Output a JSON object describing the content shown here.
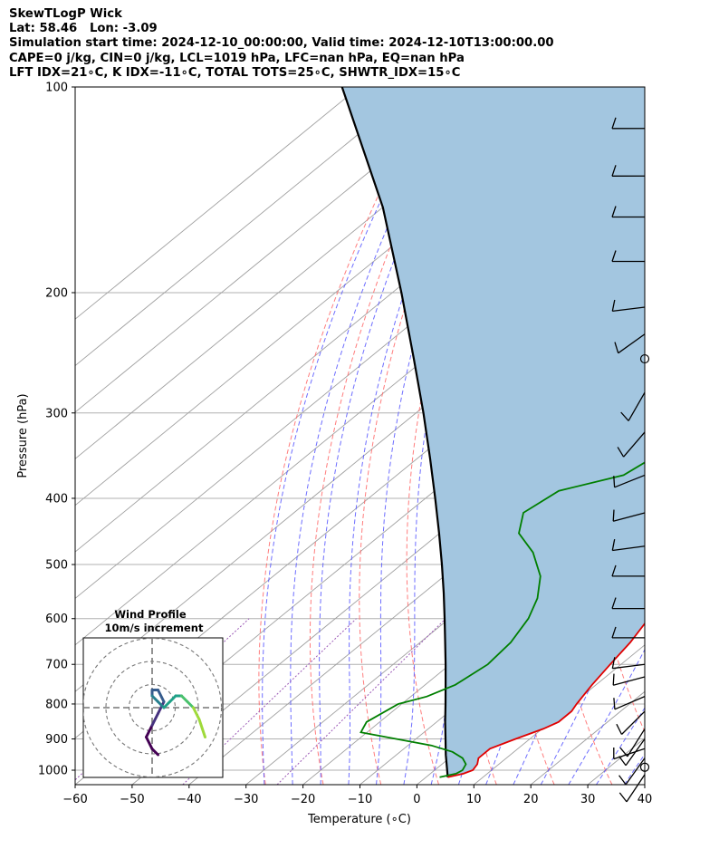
{
  "header": {
    "title": "SkewTLogP Wick",
    "location": "Lat: 58.46   Lon: -3.09",
    "times": "Simulation start time: 2024-12-10_00:00:00, Valid time: 2024-12-10T13:00:00.00",
    "indices1": "CAPE=0 j/kg, CIN=0 j/kg, LCL=1019 hPa, LFC=nan hPa, EQ=nan hPa",
    "indices2": "LFT IDX=21∘C, K IDX=-11∘C, TOTAL TOTS=25∘C, SHWTR_IDX=15∘C"
  },
  "chart_data": {
    "type": "skew-t log-p",
    "xlabel": "Temperature (∘C)",
    "ylabel": "Pressure (hPa)",
    "xlim": [
      -60,
      40
    ],
    "ylim": [
      1050,
      100
    ],
    "x_ticks": [
      -60,
      -50,
      -40,
      -30,
      -20,
      -10,
      0,
      10,
      20,
      30,
      40
    ],
    "x_tick_labels": [
      "−60",
      "−50",
      "−40",
      "−30",
      "−20",
      "−10",
      "0",
      "10",
      "20",
      "30",
      "40"
    ],
    "y_ticks": [
      100,
      200,
      300,
      400,
      500,
      600,
      700,
      800,
      900,
      1000
    ],
    "grid": true,
    "colors": {
      "temperature": "#e00000",
      "dewpoint": "#007f00",
      "parcel": "#000000",
      "shading": "#a3c6e0",
      "dry_adiabats": "#ff6666",
      "moist_adiabats": "#5555ff",
      "mixing_ratio": "#9b59b6",
      "isotherms": "#a0a0a0"
    },
    "temperature": {
      "pressure": [
        1024,
        1012,
        1000,
        980,
        960,
        930,
        900,
        870,
        850,
        820,
        800,
        750,
        700,
        650,
        600,
        550,
        500,
        460,
        430,
        400,
        370,
        350,
        320,
        300,
        270,
        250,
        230,
        215,
        200,
        190,
        175,
        160,
        150,
        140,
        130,
        120,
        110,
        100
      ],
      "value": [
        3.8,
        5.8,
        6.7,
        6.2,
        5.1,
        5.1,
        7.5,
        10.2,
        11.4,
        11.4,
        10.7,
        9.3,
        8.1,
        6.9,
        5.0,
        2.8,
        0.2,
        -2.2,
        -5.3,
        -8.5,
        -11.8,
        -13.7,
        -16.9,
        -18.8,
        -21.8,
        -24.3,
        -27.5,
        -29.8,
        -30.6,
        -32.4,
        -34.7,
        -37.2,
        -38.4,
        -39.3,
        -40.4,
        -41.5,
        -42.7,
        -43.8
      ]
    },
    "dewpoint": {
      "pressure": [
        1024,
        1012,
        1000,
        980,
        960,
        940,
        920,
        880,
        850,
        800,
        780,
        750,
        700,
        650,
        600,
        560,
        520,
        480,
        450,
        420,
        390,
        370,
        350,
        320,
        300,
        270,
        250,
        230,
        215,
        200,
        180,
        170,
        160,
        150,
        140,
        130,
        120,
        110,
        100
      ],
      "value": [
        2.4,
        4.5,
        4.9,
        4.2,
        2.3,
        -0.8,
        -5.9,
        -21.1,
        -22.3,
        -20.6,
        -17.2,
        -14.7,
        -13.4,
        -14.1,
        -16.1,
        -18.9,
        -23.1,
        -29.5,
        -36.1,
        -39.7,
        -38.2,
        -30.2,
        -28.9,
        -32.8,
        -35.4,
        -40.6,
        -43.2,
        -45.1,
        -46.1,
        -47.3,
        -47.0,
        -47.0,
        -47.1,
        -47.6,
        -48.7,
        -49.5,
        -50.5,
        -52.1,
        -52.2
      ]
    },
    "parcel": {
      "pressure": [
        1024,
        1000,
        950,
        900,
        850,
        800,
        750,
        700,
        650,
        600,
        550,
        500,
        450,
        400,
        350,
        300,
        250,
        200,
        150,
        100
      ],
      "value": [
        3.8,
        2.2,
        -1.3,
        -4.8,
        -8.5,
        -12.3,
        -16.4,
        -20.8,
        -25.6,
        -30.8,
        -36.5,
        -42.9,
        -50.1,
        -58.3,
        -67.7,
        -78.7,
        -92.0,
        -108.4,
        -130.0,
        -163.0
      ]
    },
    "wind_barbs_kt": [
      {
        "p": 1015,
        "u": 6,
        "v": 9
      },
      {
        "p": 990,
        "u": -1,
        "v": -1
      },
      {
        "p": 960,
        "u": 10,
        "v": 14
      },
      {
        "p": 930,
        "u": 12,
        "v": 4
      },
      {
        "p": 900,
        "u": 10,
        "v": 14
      },
      {
        "p": 870,
        "u": 10,
        "v": 16
      },
      {
        "p": 820,
        "u": 12,
        "v": 12
      },
      {
        "p": 780,
        "u": 14,
        "v": 6
      },
      {
        "p": 730,
        "u": 15,
        "v": 4
      },
      {
        "p": 700,
        "u": 16,
        "v": 2
      },
      {
        "p": 640,
        "u": 16,
        "v": 0
      },
      {
        "p": 580,
        "u": 16,
        "v": 0
      },
      {
        "p": 520,
        "u": 15,
        "v": 0
      },
      {
        "p": 470,
        "u": 15,
        "v": 2
      },
      {
        "p": 420,
        "u": 15,
        "v": 4
      },
      {
        "p": 370,
        "u": 15,
        "v": 6
      },
      {
        "p": 320,
        "u": 12,
        "v": 14
      },
      {
        "p": 280,
        "u": 8,
        "v": 14
      },
      {
        "p": 250,
        "u": -1,
        "v": -1
      },
      {
        "p": 230,
        "u": 14,
        "v": 10
      },
      {
        "p": 210,
        "u": 16,
        "v": 2
      },
      {
        "p": 180,
        "u": 16,
        "v": 0
      },
      {
        "p": 155,
        "u": 16,
        "v": 0
      },
      {
        "p": 135,
        "u": 16,
        "v": 0
      },
      {
        "p": 115,
        "u": 16,
        "v": 0
      }
    ],
    "hodograph": {
      "title": "Wind Profile",
      "subtitle": "10m/s increment",
      "ring_step_ms": 10,
      "rings": 3,
      "u": [
        1,
        0,
        -1,
        0,
        1,
        2,
        1,
        0,
        0,
        1,
        2,
        3,
        4,
        5,
        6,
        7,
        8,
        9
      ],
      "v": [
        -8,
        -7,
        -5,
        -3,
        -1,
        1,
        3,
        3,
        2,
        1,
        0,
        1,
        2,
        2,
        1,
        0,
        -2,
        -5
      ]
    }
  }
}
